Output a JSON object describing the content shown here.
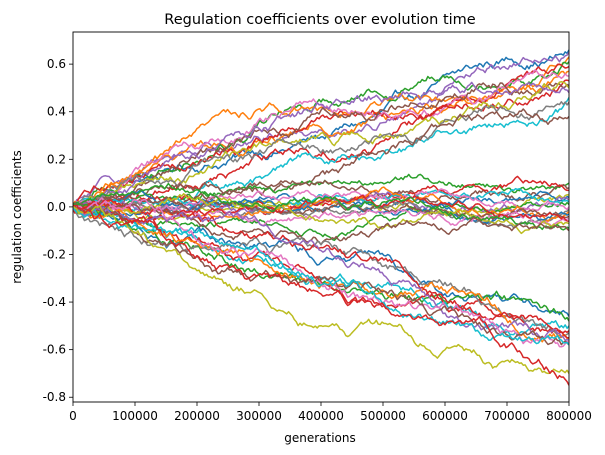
{
  "chart_data": {
    "type": "line",
    "title": "Regulation coefficients over evolution time",
    "xlabel": "generations",
    "ylabel": "regulation coefficients",
    "xlim": [
      0,
      800000
    ],
    "ylim": [
      -0.82,
      0.735
    ],
    "x_ticks": [
      "0",
      "100000",
      "200000",
      "300000",
      "400000",
      "500000",
      "600000",
      "700000",
      "800000"
    ],
    "y_ticks": [
      "-0.8",
      "-0.6",
      "-0.4",
      "-0.2",
      "0.0",
      "0.2",
      "0.4",
      "0.6"
    ],
    "x_tick_values": [
      0,
      100000,
      200000,
      300000,
      400000,
      500000,
      600000,
      700000,
      800000
    ],
    "y_tick_values": [
      -0.8,
      -0.6,
      -0.4,
      -0.2,
      0.0,
      0.2,
      0.4,
      0.6
    ],
    "grid": false,
    "legend": "none",
    "series_note_visible": false,
    "palette": [
      "#1f77b4",
      "#ff7f0e",
      "#2ca02c",
      "#d62728",
      "#9467bd",
      "#8c564b",
      "#e377c2",
      "#7f7f7f",
      "#bcbd22",
      "#17becf"
    ],
    "series": [
      {
        "color": "#1f77b4",
        "final": 0.66
      },
      {
        "color": "#9467bd",
        "final": 0.65
      },
      {
        "color": "#ff7f0e",
        "final": 0.63
      },
      {
        "color": "#2ca02c",
        "final": 0.61
      },
      {
        "color": "#d62728",
        "final": 0.59
      },
      {
        "color": "#ff7f0e",
        "final": 0.57
      },
      {
        "color": "#e377c2",
        "final": 0.55
      },
      {
        "color": "#d62728",
        "final": 0.53
      },
      {
        "color": "#8c564b",
        "final": 0.51
      },
      {
        "color": "#bcbd22",
        "final": 0.5
      },
      {
        "color": "#9467bd",
        "final": 0.48
      },
      {
        "color": "#17becf",
        "final": 0.46
      },
      {
        "color": "#7f7f7f",
        "final": 0.44
      },
      {
        "color": "#8c564b",
        "final": 0.38
      },
      {
        "color": "#2ca02c",
        "final": 0.1
      },
      {
        "color": "#8c564b",
        "final": 0.08
      },
      {
        "color": "#d62728",
        "final": 0.07
      },
      {
        "color": "#bcbd22",
        "final": 0.05
      },
      {
        "color": "#1f77b4",
        "final": 0.04
      },
      {
        "color": "#9467bd",
        "final": 0.03
      },
      {
        "color": "#17becf",
        "final": 0.02
      },
      {
        "color": "#2ca02c",
        "final": 0.01
      },
      {
        "color": "#e377c2",
        "final": 0.0
      },
      {
        "color": "#7f7f7f",
        "final": -0.01
      },
      {
        "color": "#ff7f0e",
        "final": -0.02
      },
      {
        "color": "#1f77b4",
        "final": -0.03
      },
      {
        "color": "#8c564b",
        "final": -0.04
      },
      {
        "color": "#e377c2",
        "final": -0.05
      },
      {
        "color": "#d62728",
        "final": -0.06
      },
      {
        "color": "#bcbd22",
        "final": -0.07
      },
      {
        "color": "#2ca02c",
        "final": -0.09
      },
      {
        "color": "#8c564b",
        "final": -0.1
      },
      {
        "color": "#1f77b4",
        "final": -0.46
      },
      {
        "color": "#2ca02c",
        "final": -0.48
      },
      {
        "color": "#17becf",
        "final": -0.5
      },
      {
        "color": "#d62728",
        "final": -0.52
      },
      {
        "color": "#7f7f7f",
        "final": -0.53
      },
      {
        "color": "#ff7f0e",
        "final": -0.55
      },
      {
        "color": "#d62728",
        "final": -0.55
      },
      {
        "color": "#9467bd",
        "final": -0.56
      },
      {
        "color": "#e377c2",
        "final": -0.57
      },
      {
        "color": "#8c564b",
        "final": -0.58
      },
      {
        "color": "#17becf",
        "final": -0.58
      },
      {
        "color": "#bcbd22",
        "final": -0.7
      },
      {
        "color": "#d62728",
        "final": -0.75
      }
    ]
  }
}
